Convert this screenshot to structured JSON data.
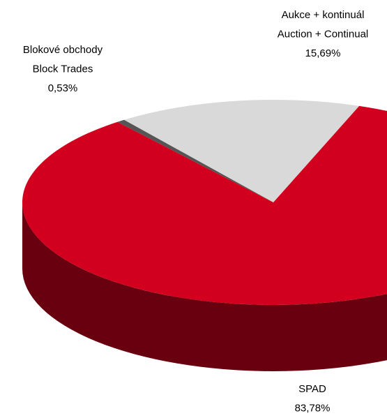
{
  "chart_data": {
    "type": "pie",
    "categories": [
      [
        "Aukce + kontinuál",
        "Auction + Continual"
      ],
      [
        "Blokové obchody",
        "Block Trades"
      ],
      [
        "SPAD"
      ]
    ],
    "values": [
      15.69,
      0.53,
      83.78
    ],
    "value_labels": [
      "15,69%",
      "0,53%",
      "83,78%"
    ],
    "colors": [
      "#d9d9d9",
      "#555555",
      "#d2001e"
    ]
  }
}
